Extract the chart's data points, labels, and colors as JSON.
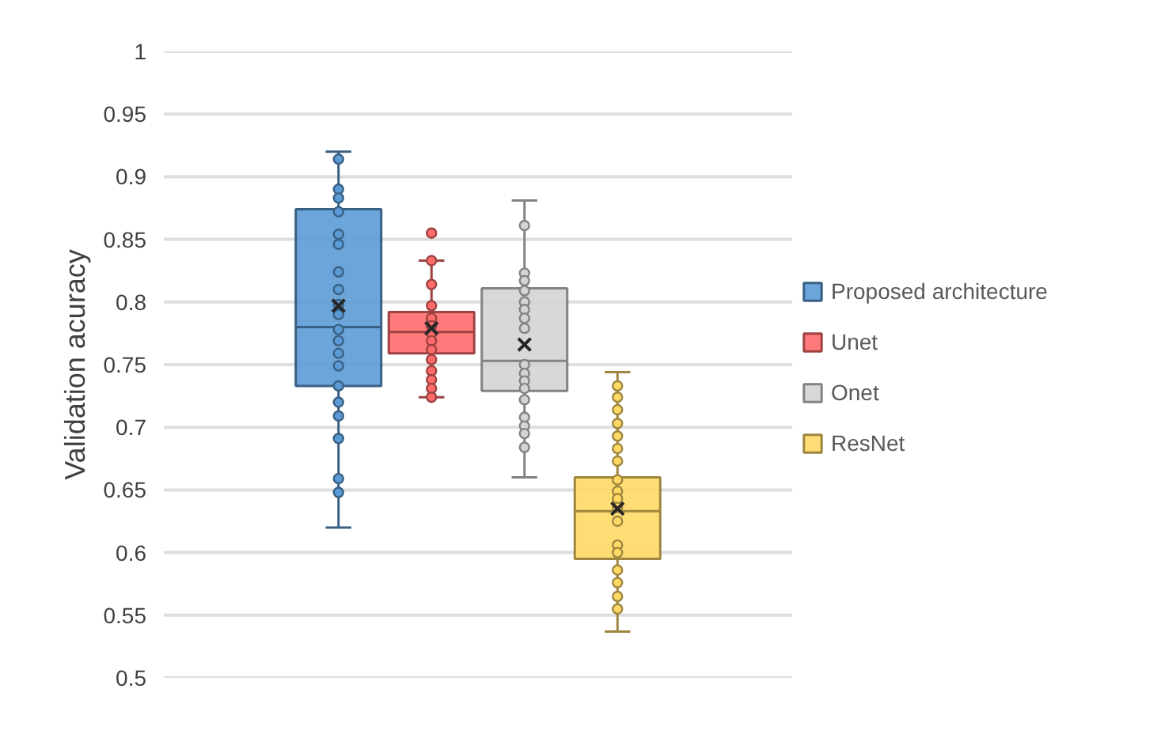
{
  "chart_data": {
    "type": "box",
    "ylabel": "Validation acuracy",
    "categories": [
      null
    ],
    "ylim": [
      0.5,
      1
    ],
    "yticks": [
      0.5,
      0.55,
      0.6,
      0.65,
      0.7,
      0.75,
      0.8,
      0.85,
      0.9,
      0.95,
      1
    ],
    "grid": "y",
    "legend": "right",
    "tick_labels": "y",
    "marker": "circle",
    "series": [
      {
        "name": "Proposed architecture",
        "color": "#5b9bd5",
        "boxes": [
          {
            "low": 0.62,
            "q1": 0.733,
            "median": 0.78,
            "q3": 0.874,
            "high": 0.92,
            "mean": 0.797,
            "outliers": [
              0.914,
              0.89,
              0.883,
              0.872,
              0.854,
              0.846,
              0.824,
              0.81,
              0.798,
              0.79,
              0.778,
              0.769,
              0.759,
              0.749,
              0.733,
              0.72,
              0.709,
              0.691,
              0.659,
              0.648
            ]
          }
        ]
      },
      {
        "name": "Unet",
        "color": "#ff6b6b",
        "boxes": [
          {
            "low": 0.724,
            "q1": 0.759,
            "median": 0.776,
            "q3": 0.792,
            "high": 0.833,
            "mean": 0.779,
            "outliers": [
              0.855,
              0.833,
              0.814,
              0.797,
              0.787,
              0.781,
              0.775,
              0.769,
              0.762,
              0.754,
              0.745,
              0.738,
              0.731,
              0.724
            ]
          }
        ]
      },
      {
        "name": "Onet",
        "color": "#d4d4d4",
        "boxes": [
          {
            "low": 0.66,
            "q1": 0.729,
            "median": 0.753,
            "q3": 0.811,
            "high": 0.881,
            "mean": 0.766,
            "outliers": [
              0.861,
              0.823,
              0.817,
              0.809,
              0.8,
              0.794,
              0.787,
              0.779,
              0.75,
              0.743,
              0.737,
              0.731,
              0.722,
              0.708,
              0.701,
              0.695,
              0.684
            ]
          }
        ]
      },
      {
        "name": "ResNet",
        "color": "#ffd966",
        "boxes": [
          {
            "low": 0.537,
            "q1": 0.595,
            "median": 0.633,
            "q3": 0.66,
            "high": 0.744,
            "mean": 0.635,
            "outliers": [
              0.733,
              0.724,
              0.714,
              0.703,
              0.693,
              0.683,
              0.673,
              0.658,
              0.649,
              0.643,
              0.636,
              0.625,
              0.606,
              0.6,
              0.586,
              0.576,
              0.565,
              0.555
            ]
          }
        ]
      }
    ]
  }
}
